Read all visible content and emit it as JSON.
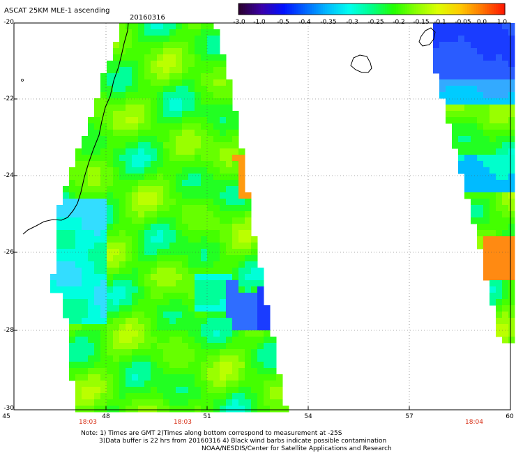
{
  "header": {
    "title": "ASCAT 25KM MLE-1 ascending",
    "date": "20160316"
  },
  "colorbar": {
    "labels": [
      "-3.0",
      "-1.0",
      "-0.5",
      "-0.4",
      "-0.35",
      "-0.3",
      "-0.25",
      "-0.2",
      "-0.15",
      "-0.1",
      "-0.05",
      "0.0",
      "1.0"
    ],
    "colors": [
      "#2a0030",
      "#3a00a8",
      "#0010ff",
      "#0066ff",
      "#00bbff",
      "#00ffee",
      "#00ff88",
      "#22ff00",
      "#88ff00",
      "#ddff00",
      "#ffcc00",
      "#ff7700",
      "#ff1800"
    ]
  },
  "axes": {
    "lat_labels": [
      "-20",
      "-22",
      "-24",
      "-26",
      "-28",
      "-30"
    ],
    "lon_labels": [
      "45",
      "48",
      "51",
      "54",
      "57",
      "60"
    ]
  },
  "swath_times": [
    "18:03",
    "18:03",
    "18:04"
  ],
  "notes": {
    "line1": "Note: 1) Times are GMT 2)Times along bottom correspond to measurement at -25S",
    "line2": "3)Data buffer is 22 hrs from 20160316 4) Black wind barbs indicate possible contamination",
    "line3": "NOAA/NESDIS/Center for Satellite Applications and Research"
  }
}
